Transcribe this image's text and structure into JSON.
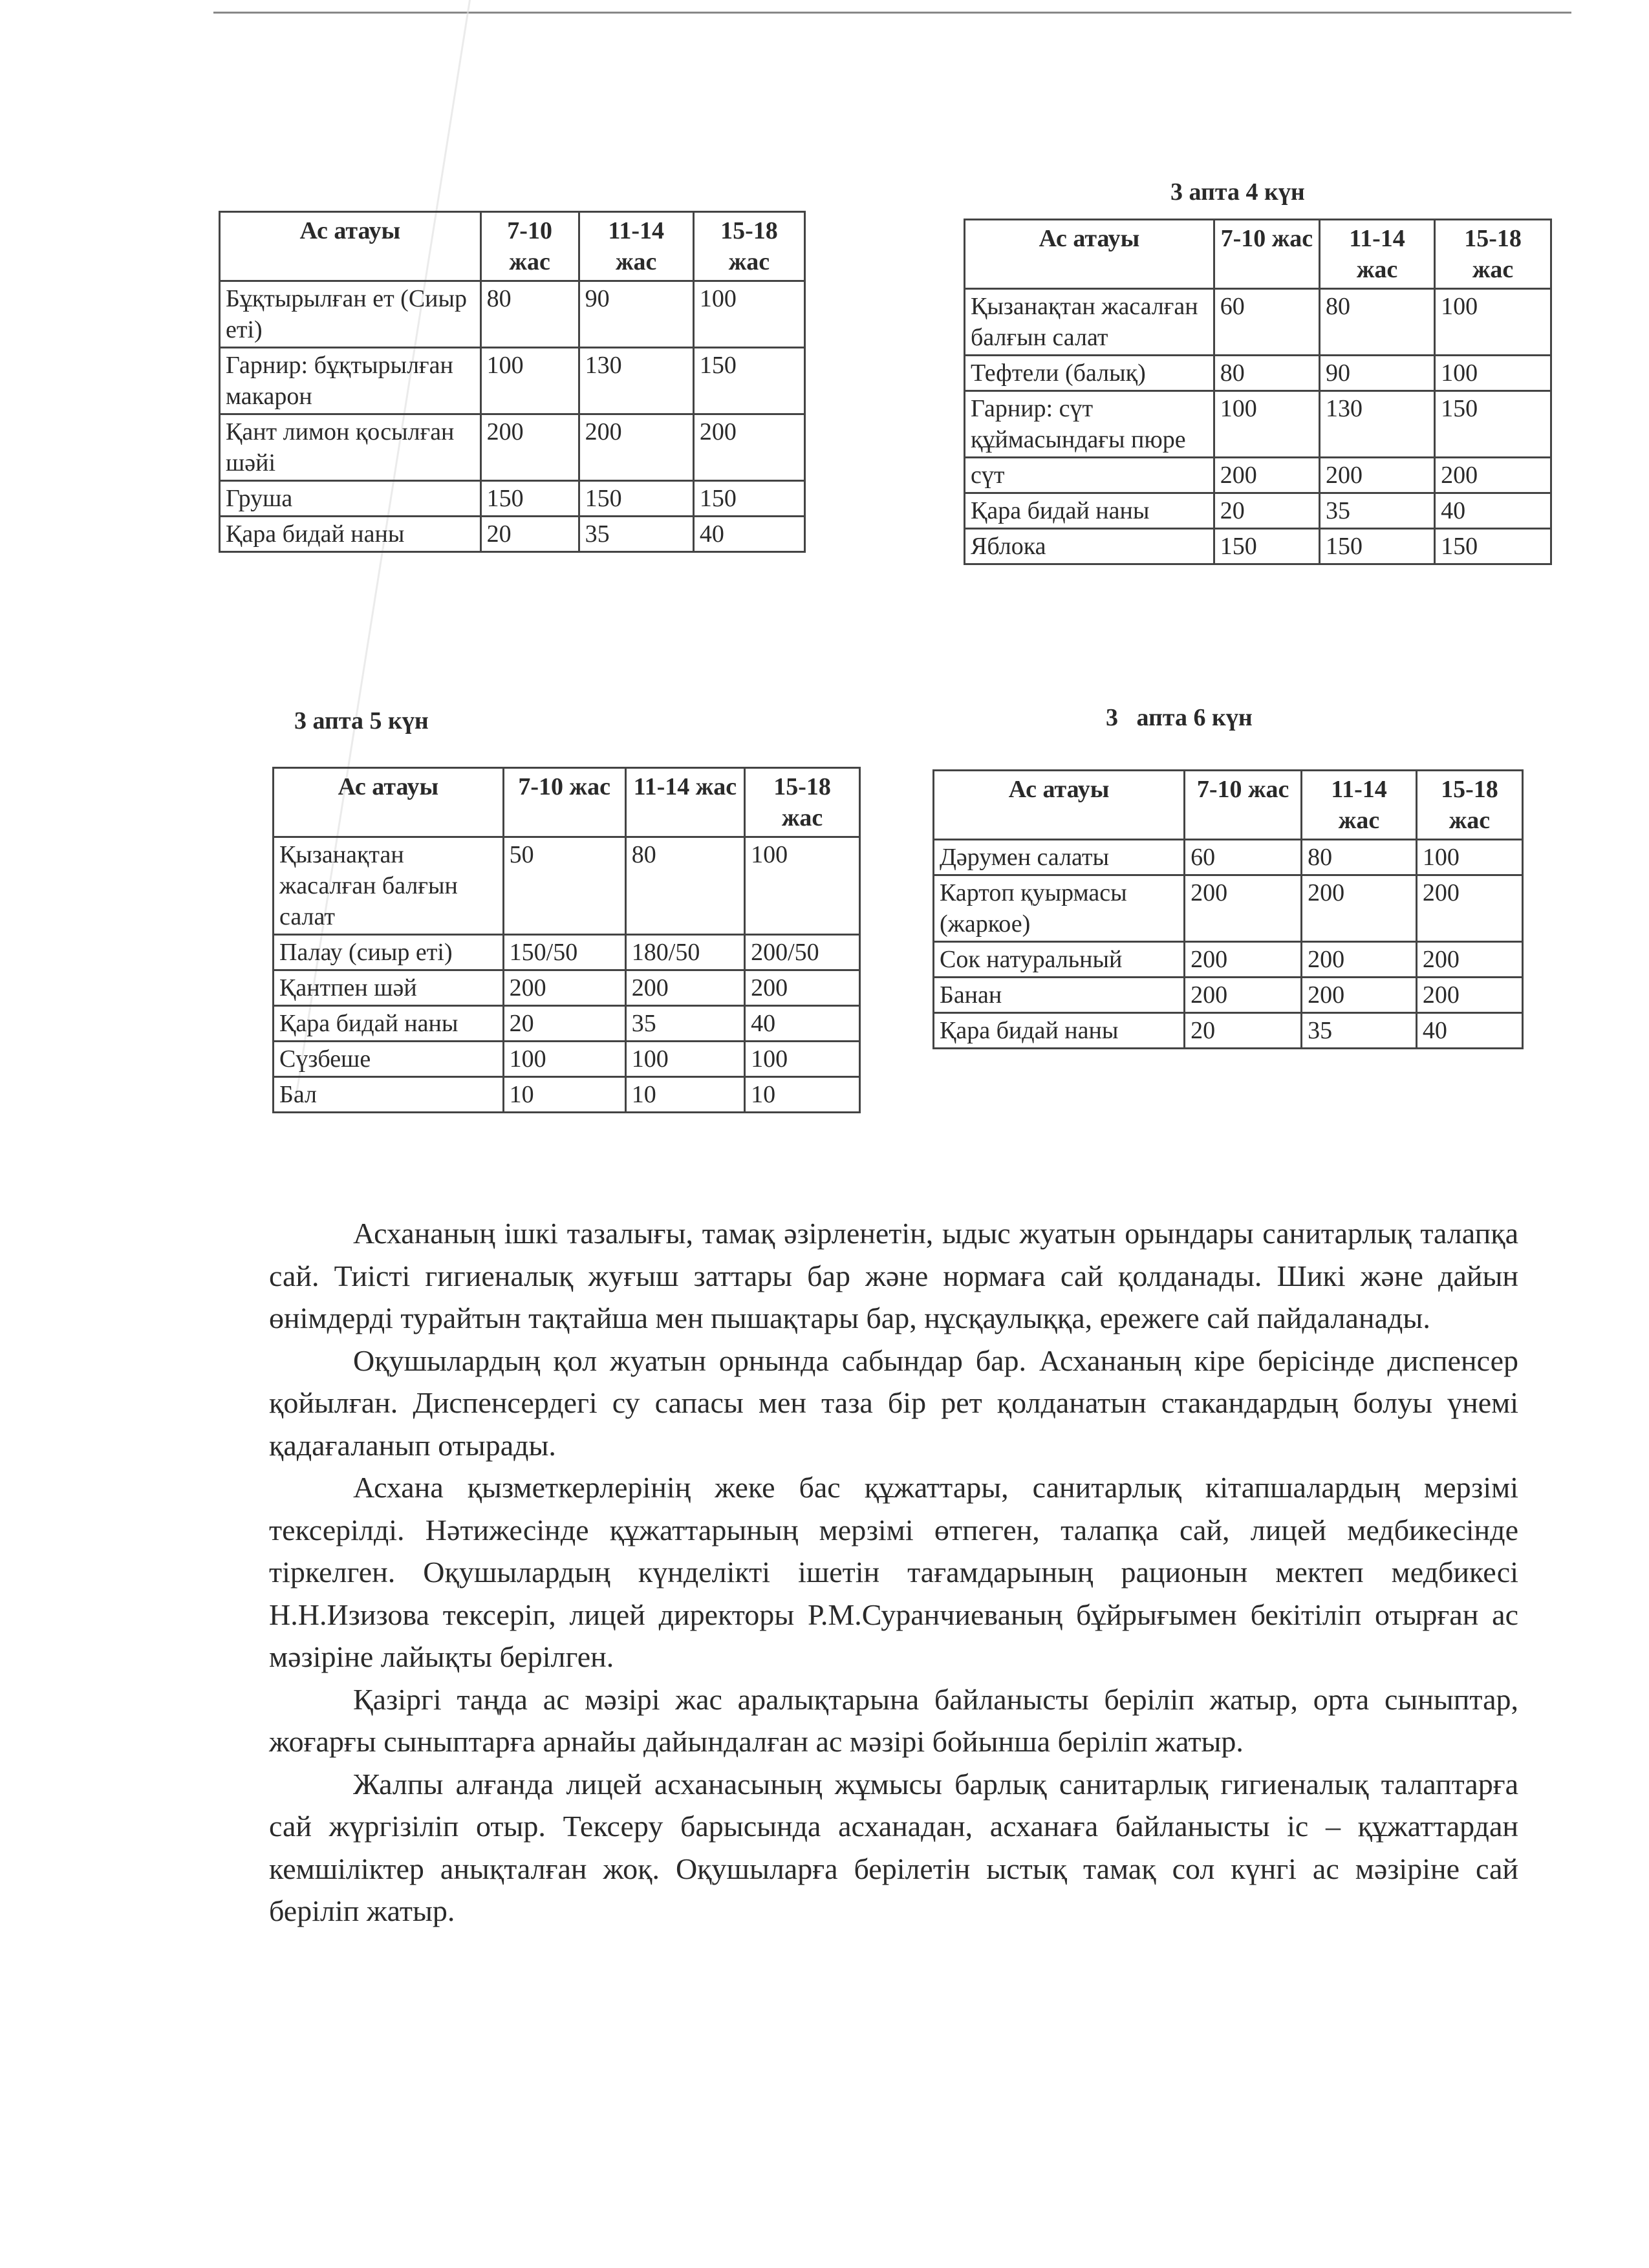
{
  "tables": [
    {
      "title": "",
      "headers": [
        "Ас атауы",
        "7-10 жас",
        "11-14 жас",
        "15-18 жас"
      ],
      "rows": [
        [
          "Бұқтырылған ет (Сиыр еті)",
          "80",
          "90",
          "100"
        ],
        [
          "Гарнир: бұқтырылған макарон",
          "100",
          "130",
          "150"
        ],
        [
          "Қант лимон қосылған шәйі",
          "200",
          "200",
          "200"
        ],
        [
          "Груша",
          "150",
          "150",
          "150"
        ],
        [
          "Қара бидай наны",
          "20",
          "35",
          "40"
        ]
      ]
    },
    {
      "title": "3 апта 4 күн",
      "headers": [
        "Ас атауы",
        "7-10 жас",
        "11-14 жас",
        "15-18 жас"
      ],
      "rows": [
        [
          "Қызанақтан жасалған балғын салат",
          "60",
          "80",
          "100"
        ],
        [
          "Тефтели (балық)",
          "80",
          "90",
          "100"
        ],
        [
          "Гарнир:  сүт құймасындағы пюре",
          "100",
          "130",
          "150"
        ],
        [
          "сүт",
          "200",
          "200",
          "200"
        ],
        [
          "Қара бидай наны",
          "20",
          "35",
          "40"
        ],
        [
          "Яблока",
          "150",
          "150",
          "150"
        ]
      ]
    },
    {
      "title": "3 апта 5 күн",
      "headers": [
        "Ас атауы",
        "7-10 жас",
        "11-14 жас",
        "15-18 жас"
      ],
      "rows": [
        [
          "Қызанақтан жасалған балғын салат",
          "50",
          "80",
          "100"
        ],
        [
          "Палау (сиыр еті)",
          "150/50",
          "180/50",
          "200/50"
        ],
        [
          "Қантпен шәй",
          "200",
          "200",
          "200"
        ],
        [
          "Қара бидай наны",
          "20",
          "35",
          "40"
        ],
        [
          "Сүзбеше",
          "100",
          "100",
          "100"
        ],
        [
          "Бал",
          "10",
          "10",
          "10"
        ]
      ]
    },
    {
      "title": "3   апта 6 күн",
      "headers": [
        "Ас атауы",
        "7-10 жас",
        "11-14 жас",
        "15-18 жас"
      ],
      "rows": [
        [
          "Дәрумен салаты",
          "60",
          "80",
          "100"
        ],
        [
          "Картоп қуырмасы (жаркое)",
          "200",
          "200",
          "200"
        ],
        [
          "Сок натуральный",
          "200",
          "200",
          "200"
        ],
        [
          "Банан",
          "200",
          "200",
          "200"
        ],
        [
          "Қара бидай наны",
          "20",
          "35",
          "40"
        ]
      ]
    }
  ],
  "paragraphs": [
    "Асхананың ішкі тазалығы, тамақ әзірленетін, ыдыс жуатын орындары санитарлық талапқа сай. Тиісті гигиеналық жуғыш заттары бар және нормаға сай қолданады. Шикі және дайын өнімдерді турайтын тақтайша мен пышақтары бар, нұсқаулыққа, ережеге сай пайдаланады.",
    "Оқушылардың қол жуатын орнында сабындар бар. Асхананың кіре берісінде диспенсер қойылған. Диспенсердегі су сапасы мен таза бір рет қолданатын стакандардың  болуы үнемі қадағаланып отырады.",
    "Асхана қызметкерлерінің жеке бас құжаттары, санитарлық кітапшалардың мерзімі тексерілді. Нәтижесінде құжаттарының мерзімі өтпеген, талапқа сай, лицей медбикесінде тіркелген. Оқушылардың күнделікті ішетін тағамдарының рационын мектеп медбикесі Н.Н.Изизова тексеріп, лицей директоры Р.М.Суранчиеваның бұйрығымен бекітіліп отырған ас мәзіріне лайықты берілген.",
    "Қазіргі таңда ас мәзірі жас аралықтарына байланысты беріліп жатыр, орта сыныптар, жоғарғы сыныптарға арнайы дайындалған ас мәзірі бойынша беріліп жатыр.",
    "Жалпы алғанда лицей асханасының жұмысы барлық санитарлық гигиеналық талаптарға сай жүргізіліп отыр. Тексеру барысында асханадан, асханаға байланысты іс – құжаттардан кемшіліктер анықталған жоқ. Оқушыларға берілетін ыстық тамақ сол күнгі ас мәзіріне сай беріліп жатыр."
  ]
}
